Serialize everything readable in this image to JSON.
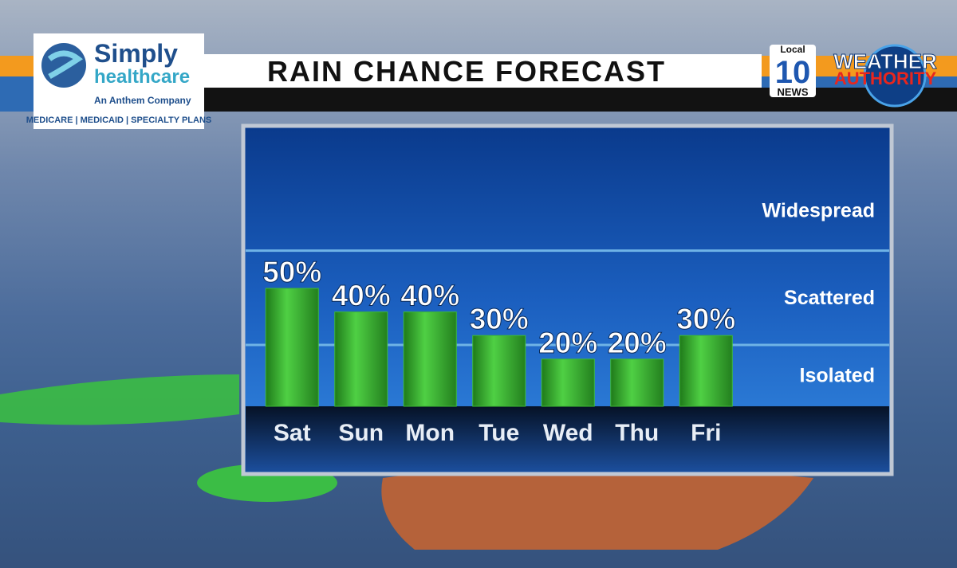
{
  "sponsor": {
    "name": "Simply",
    "name_line2": "healthcare",
    "tagline": "An Anthem Company",
    "plans": "MEDICARE | MEDICAID | SPECIALTY PLANS"
  },
  "station": {
    "local": "Local",
    "number": "10",
    "news": "NEWS",
    "brand_line1": "WEATHER",
    "brand_line2": "AUTHORITY"
  },
  "chart_data": {
    "type": "bar",
    "title": "RAIN CHANCE FORECAST",
    "categories": [
      "Sat",
      "Sun",
      "Mon",
      "Tue",
      "Wed",
      "Thu",
      "Fri"
    ],
    "values": [
      50,
      40,
      40,
      30,
      20,
      20,
      30
    ],
    "value_labels": [
      "50%",
      "40%",
      "40%",
      "30%",
      "20%",
      "20%",
      "30%"
    ],
    "color": "#3cba32",
    "ylim": [
      0,
      100
    ],
    "bands": [
      {
        "label": "Isolated",
        "from": 0,
        "to": 26
      },
      {
        "label": "Scattered",
        "from": 26,
        "to": 66
      },
      {
        "label": "Widespread",
        "from": 66,
        "to": 100
      }
    ]
  }
}
